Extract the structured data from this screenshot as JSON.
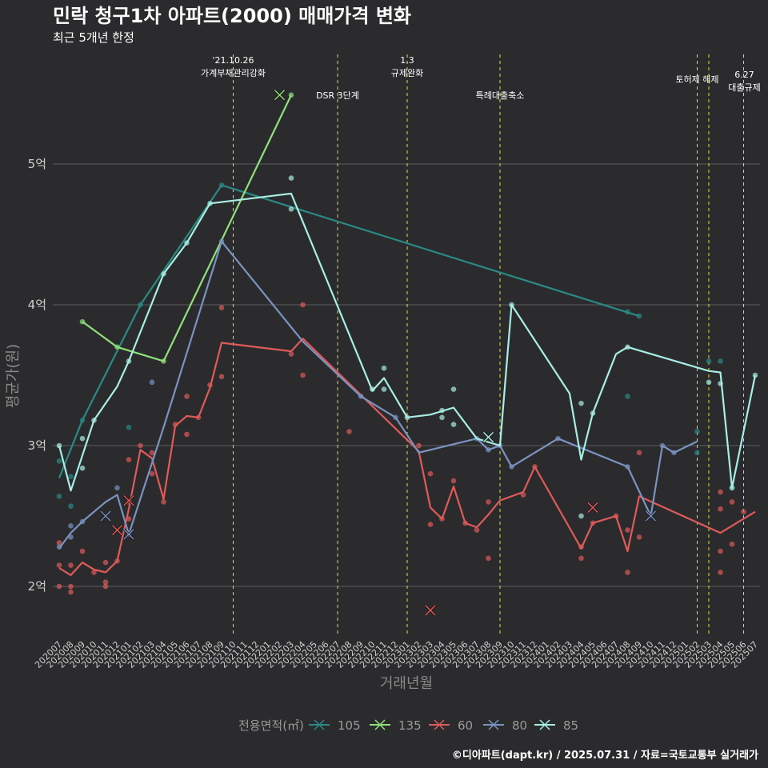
{
  "chart_data": {
    "type": "line",
    "title": "민락 청구1차 아파트(2000) 매매가격 변화",
    "subtitle": "최근 5개년 한정",
    "xlabel": "거래년월",
    "ylabel": "평균가(원)",
    "caption": "©디아파트(dapt.kr) / 2025.07.31 / 자료=국토교통부 실거래가",
    "legend_title": "전용면적(㎡)",
    "legend_position": "bottom",
    "grid": "horizontal",
    "x_categories": [
      "202007",
      "202008",
      "202009",
      "202010",
      "202011",
      "202012",
      "202101",
      "202102",
      "202103",
      "202104",
      "202105",
      "202106",
      "202107",
      "202108",
      "202109",
      "202110",
      "202111",
      "202112",
      "202201",
      "202202",
      "202203",
      "202204",
      "202205",
      "202206",
      "202207",
      "202208",
      "202209",
      "202210",
      "202211",
      "202212",
      "202301",
      "202302",
      "202303",
      "202304",
      "202305",
      "202306",
      "202307",
      "202308",
      "202309",
      "202310",
      "202311",
      "202312",
      "202401",
      "202402",
      "202403",
      "202404",
      "202405",
      "202406",
      "202407",
      "202408",
      "202409",
      "202410",
      "202411",
      "202412",
      "202501",
      "202502",
      "202503",
      "202504",
      "202505",
      "202506",
      "202507"
    ],
    "ylim": [
      1.65,
      5.9
    ],
    "y_ticks": [
      {
        "value": 2,
        "label": "2억"
      },
      {
        "value": 3,
        "label": "3억"
      },
      {
        "value": 4,
        "label": "4억"
      },
      {
        "value": 5,
        "label": "5억"
      }
    ],
    "events": [
      {
        "x": "202110",
        "label": "'21.10.26\n가계부채관리강화",
        "row": 0
      },
      {
        "x": "202207",
        "label": "DSR 3단계",
        "row": 2
      },
      {
        "x": "202301",
        "label": "1.3\n규제완화",
        "row": 0
      },
      {
        "x": "202309",
        "label": "특례대출축소",
        "row": 2
      },
      {
        "x": "202502",
        "label": "토허제 해제",
        "row": 1
      },
      {
        "x": "202503",
        "label": "",
        "row": 1
      },
      {
        "x": "202506",
        "label": "6.27\n대출규제",
        "row": 1
      }
    ],
    "series": [
      {
        "name": "105",
        "color": "#2a8a86",
        "line": [
          [
            "202007",
            2.77
          ],
          [
            "202009",
            3.18
          ],
          [
            "202102",
            4.0
          ],
          [
            "202109",
            4.85
          ],
          [
            "202409",
            3.92
          ]
        ],
        "points": [
          [
            "202007",
            2.64
          ],
          [
            "202007",
            2.89
          ],
          [
            "202008",
            2.78
          ],
          [
            "202008",
            2.57
          ],
          [
            "202009",
            3.18
          ],
          [
            "202101",
            3.13
          ],
          [
            "202102",
            4.0
          ],
          [
            "202109",
            4.85
          ],
          [
            "202408",
            3.95
          ],
          [
            "202409",
            3.92
          ],
          [
            "202408",
            3.35
          ],
          [
            "202502",
            3.1
          ],
          [
            "202502",
            2.95
          ],
          [
            "202503",
            3.6
          ],
          [
            "202504",
            3.6
          ],
          [
            "202505",
            2.7
          ]
        ],
        "crosses": []
      },
      {
        "name": "135",
        "color": "#90e07c",
        "line": [
          [
            "202009",
            3.88
          ],
          [
            "202012",
            3.7
          ],
          [
            "202104",
            3.6
          ],
          [
            "202203",
            5.49
          ]
        ],
        "points": [
          [
            "202009",
            3.88
          ],
          [
            "202012",
            3.7
          ],
          [
            "202104",
            3.6
          ],
          [
            "202203",
            5.49
          ]
        ],
        "crosses": [
          [
            "202202",
            5.49
          ]
        ]
      },
      {
        "name": "60",
        "color": "#e05a5a",
        "line": [
          [
            "202007",
            2.13
          ],
          [
            "202008",
            2.08
          ],
          [
            "202009",
            2.17
          ],
          [
            "202010",
            2.12
          ],
          [
            "202011",
            2.1
          ],
          [
            "202012",
            2.18
          ],
          [
            "202101",
            2.55
          ],
          [
            "202102",
            2.97
          ],
          [
            "202103",
            2.91
          ],
          [
            "202104",
            2.62
          ],
          [
            "202105",
            3.14
          ],
          [
            "202106",
            3.21
          ],
          [
            "202107",
            3.2
          ],
          [
            "202108",
            3.41
          ],
          [
            "202109",
            3.73
          ],
          [
            "202203",
            3.67
          ],
          [
            "202204",
            3.76
          ],
          [
            "202302",
            2.96
          ],
          [
            "202303",
            2.56
          ],
          [
            "202304",
            2.48
          ],
          [
            "202305",
            2.71
          ],
          [
            "202306",
            2.45
          ],
          [
            "202307",
            2.42
          ],
          [
            "202308",
            2.51
          ],
          [
            "202309",
            2.61
          ],
          [
            "202311",
            2.67
          ],
          [
            "202312",
            2.85
          ],
          [
            "202404",
            2.27
          ],
          [
            "202405",
            2.45
          ],
          [
            "202407",
            2.5
          ],
          [
            "202408",
            2.25
          ],
          [
            "202409",
            2.64
          ],
          [
            "202504",
            2.38
          ],
          [
            "202507",
            2.53
          ]
        ],
        "points": [
          [
            "202007",
            2.31
          ],
          [
            "202007",
            2.15
          ],
          [
            "202007",
            2.0
          ],
          [
            "202008",
            2.15
          ],
          [
            "202008",
            1.96
          ],
          [
            "202008",
            2.0
          ],
          [
            "202009",
            2.25
          ],
          [
            "202010",
            2.1
          ],
          [
            "202011",
            2.17
          ],
          [
            "202011",
            2.0
          ],
          [
            "202011",
            2.03
          ],
          [
            "202012",
            2.18
          ],
          [
            "202101",
            2.9
          ],
          [
            "202101",
            2.6
          ],
          [
            "202101",
            2.48
          ],
          [
            "202102",
            3.0
          ],
          [
            "202103",
            2.95
          ],
          [
            "202103",
            2.8
          ],
          [
            "202104",
            2.6
          ],
          [
            "202105",
            3.15
          ],
          [
            "202106",
            3.35
          ],
          [
            "202106",
            3.08
          ],
          [
            "202107",
            3.2
          ],
          [
            "202108",
            3.43
          ],
          [
            "202109",
            3.98
          ],
          [
            "202109",
            3.49
          ],
          [
            "202208",
            3.1
          ],
          [
            "202203",
            3.65
          ],
          [
            "202204",
            4.0
          ],
          [
            "202204",
            3.5
          ],
          [
            "202302",
            3.0
          ],
          [
            "202303",
            2.44
          ],
          [
            "202303",
            2.8
          ],
          [
            "202304",
            2.48
          ],
          [
            "202305",
            2.75
          ],
          [
            "202306",
            2.45
          ],
          [
            "202307",
            2.4
          ],
          [
            "202308",
            2.6
          ],
          [
            "202308",
            2.2
          ],
          [
            "202311",
            2.65
          ],
          [
            "202312",
            2.85
          ],
          [
            "202404",
            2.28
          ],
          [
            "202404",
            2.2
          ],
          [
            "202405",
            2.45
          ],
          [
            "202407",
            2.5
          ],
          [
            "202408",
            2.4
          ],
          [
            "202408",
            2.1
          ],
          [
            "202409",
            2.95
          ],
          [
            "202409",
            2.35
          ],
          [
            "202504",
            2.67
          ],
          [
            "202504",
            2.55
          ],
          [
            "202504",
            2.25
          ],
          [
            "202504",
            2.1
          ],
          [
            "202505",
            2.6
          ],
          [
            "202505",
            2.3
          ],
          [
            "202506",
            2.53
          ]
        ],
        "crosses": [
          [
            "202012",
            2.4
          ],
          [
            "202101",
            2.61
          ],
          [
            "202303",
            1.83
          ],
          [
            "202405",
            2.56
          ]
        ]
      },
      {
        "name": "80",
        "color": "#7b93c2",
        "line": [
          [
            "202007",
            2.27
          ],
          [
            "202008",
            2.38
          ],
          [
            "202009",
            2.46
          ],
          [
            "202011",
            2.6
          ],
          [
            "202012",
            2.65
          ],
          [
            "202101",
            2.37
          ],
          [
            "202104",
            3.13
          ],
          [
            "202109",
            4.45
          ],
          [
            "202204",
            3.74
          ],
          [
            "202209",
            3.35
          ],
          [
            "202212",
            3.2
          ],
          [
            "202302",
            2.95
          ],
          [
            "202307",
            3.05
          ],
          [
            "202308",
            2.97
          ],
          [
            "202309",
            3.0
          ],
          [
            "202310",
            2.85
          ],
          [
            "202402",
            3.05
          ],
          [
            "202408",
            2.85
          ],
          [
            "202410",
            2.5
          ],
          [
            "202411",
            3.0
          ],
          [
            "202412",
            2.95
          ],
          [
            "202502",
            3.03
          ]
        ],
        "points": [
          [
            "202007",
            2.28
          ],
          [
            "202008",
            2.43
          ],
          [
            "202008",
            2.35
          ],
          [
            "202009",
            2.46
          ],
          [
            "202012",
            2.7
          ],
          [
            "202101",
            2.37
          ],
          [
            "202103",
            3.45
          ],
          [
            "202109",
            4.45
          ],
          [
            "202209",
            3.35
          ],
          [
            "202212",
            3.2
          ],
          [
            "202307",
            3.05
          ],
          [
            "202308",
            2.97
          ],
          [
            "202309",
            3.0
          ],
          [
            "202310",
            2.85
          ],
          [
            "202402",
            3.05
          ],
          [
            "202408",
            2.85
          ],
          [
            "202411",
            3.0
          ],
          [
            "202412",
            2.95
          ]
        ],
        "crosses": [
          [
            "202011",
            2.5
          ],
          [
            "202101",
            2.37
          ],
          [
            "202410",
            2.5
          ]
        ]
      },
      {
        "name": "85",
        "color": "#a8eee4",
        "line": [
          [
            "202007",
            3.0
          ],
          [
            "202008",
            2.68
          ],
          [
            "202010",
            3.18
          ],
          [
            "202012",
            3.42
          ],
          [
            "202101",
            3.6
          ],
          [
            "202104",
            4.22
          ],
          [
            "202106",
            4.44
          ],
          [
            "202108",
            4.72
          ],
          [
            "202202",
            4.78
          ],
          [
            "202203",
            4.79
          ],
          [
            "202210",
            3.39
          ],
          [
            "202211",
            3.48
          ],
          [
            "202301",
            3.2
          ],
          [
            "202303",
            3.22
          ],
          [
            "202305",
            3.27
          ],
          [
            "202307",
            3.05
          ],
          [
            "202309",
            3.0
          ],
          [
            "202310",
            4.0
          ],
          [
            "202403",
            3.37
          ],
          [
            "202404",
            2.9
          ],
          [
            "202405",
            3.23
          ],
          [
            "202407",
            3.65
          ],
          [
            "202408",
            3.7
          ],
          [
            "202503",
            3.53
          ],
          [
            "202504",
            3.52
          ],
          [
            "202505",
            2.7
          ],
          [
            "202507",
            3.5
          ]
        ],
        "points": [
          [
            "202007",
            3.0
          ],
          [
            "202009",
            3.05
          ],
          [
            "202009",
            2.84
          ],
          [
            "202010",
            3.18
          ],
          [
            "202101",
            3.6
          ],
          [
            "202104",
            4.22
          ],
          [
            "202106",
            4.44
          ],
          [
            "202108",
            4.72
          ],
          [
            "202203",
            4.9
          ],
          [
            "202203",
            4.68
          ],
          [
            "202210",
            3.4
          ],
          [
            "202211",
            3.55
          ],
          [
            "202211",
            3.4
          ],
          [
            "202301",
            3.2
          ],
          [
            "202304",
            3.25
          ],
          [
            "202304",
            3.2
          ],
          [
            "202305",
            3.4
          ],
          [
            "202305",
            3.15
          ],
          [
            "202310",
            4.0
          ],
          [
            "202404",
            3.3
          ],
          [
            "202404",
            2.5
          ],
          [
            "202405",
            3.23
          ],
          [
            "202408",
            3.7
          ],
          [
            "202503",
            3.45
          ],
          [
            "202504",
            3.44
          ],
          [
            "202505",
            2.7
          ],
          [
            "202507",
            3.5
          ]
        ],
        "crosses": [
          [
            "202308",
            3.06
          ]
        ]
      }
    ]
  }
}
